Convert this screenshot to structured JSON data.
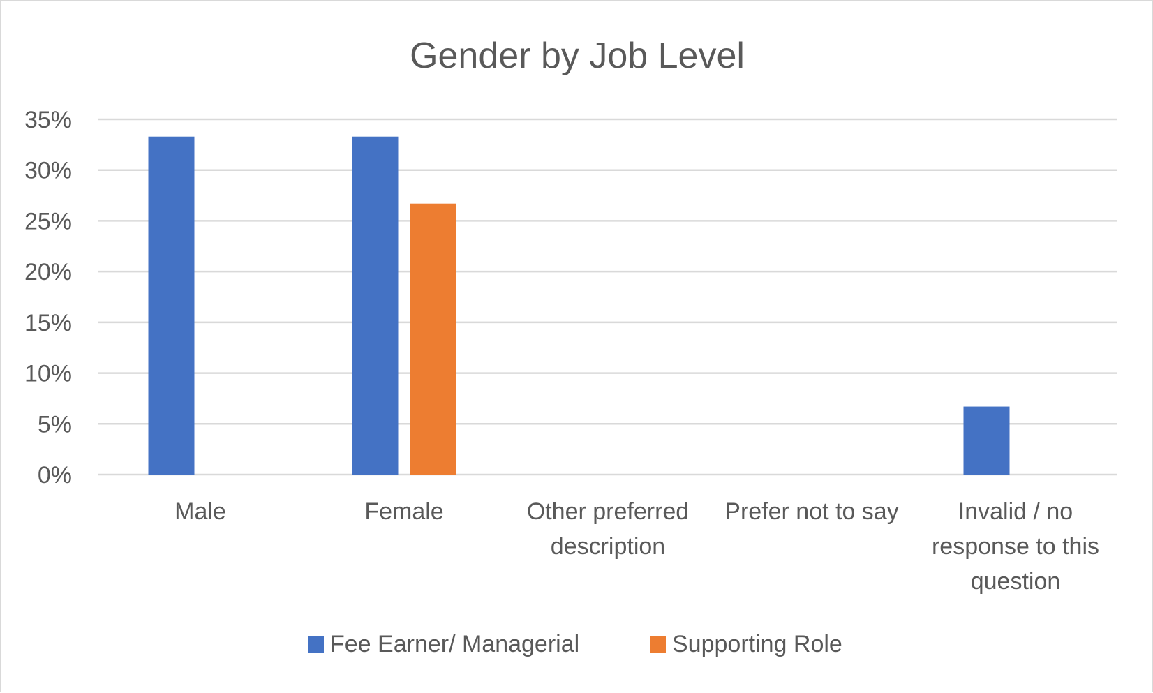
{
  "chart_data": {
    "type": "bar",
    "title": "Gender by Job Level",
    "xlabel": "",
    "ylabel": "",
    "ylim": [
      0,
      35
    ],
    "ytick_step": 5,
    "ytick_suffix": "%",
    "grid": true,
    "legend_position": "bottom",
    "categories": [
      [
        "Male"
      ],
      [
        "Female"
      ],
      [
        "Other preferred",
        "description"
      ],
      [
        "Prefer not to say"
      ],
      [
        "Invalid / no",
        "response to this",
        "question"
      ]
    ],
    "series": [
      {
        "name": "Fee Earner/ Managerial",
        "color": "#4472C4",
        "values": [
          33.3,
          33.3,
          0,
          0,
          6.7
        ]
      },
      {
        "name": "Supporting Role",
        "color": "#ED7D31",
        "values": [
          0,
          26.7,
          0,
          0,
          0
        ]
      }
    ]
  }
}
